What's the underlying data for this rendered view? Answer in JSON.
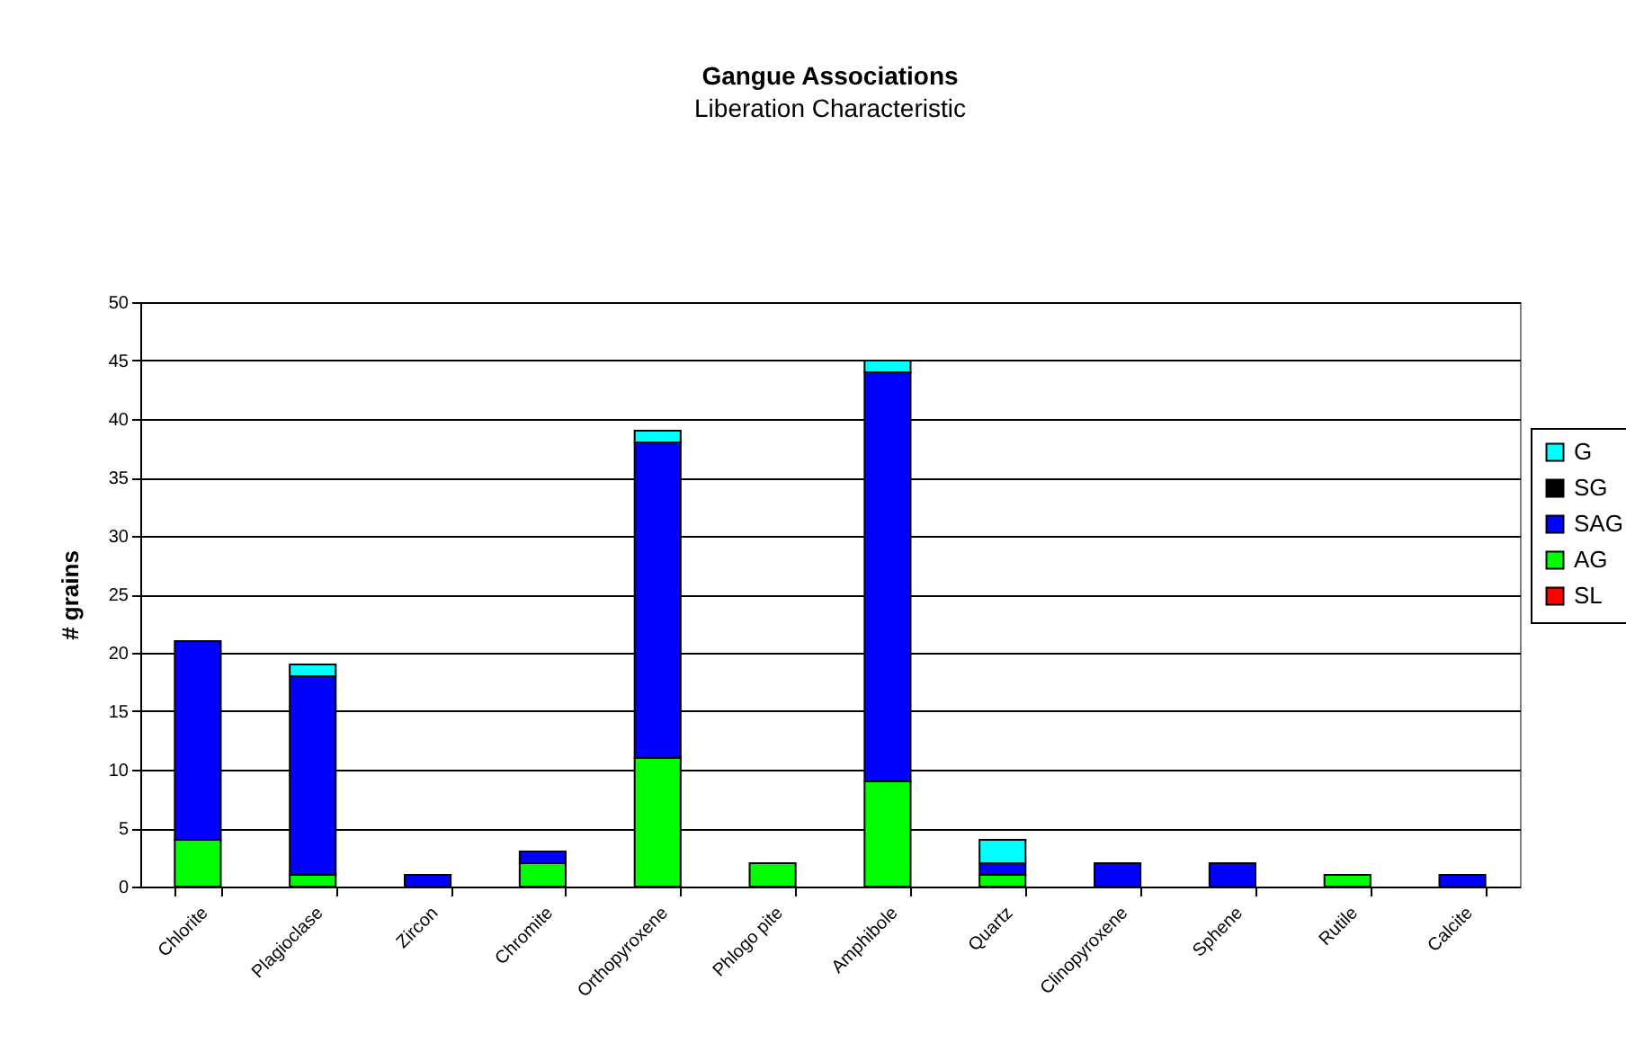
{
  "chart_data": {
    "type": "bar",
    "title": "Gangue Associations",
    "subtitle": "Liberation Characteristic",
    "ylabel": "# grains",
    "categories": [
      "Chlorite",
      "Plagioclase",
      "Zircon",
      "Chromite",
      "Orthopyroxene",
      "Phlogo pite",
      "Amphibole",
      "Quartz",
      "Clinopyroxene",
      "Sphene",
      "Rutile",
      "Calcite"
    ],
    "series": [
      {
        "name": "SL",
        "color": "#ff0000",
        "values": [
          0,
          0,
          0,
          0,
          0,
          0,
          0,
          0,
          0,
          0,
          0,
          0
        ]
      },
      {
        "name": "AG",
        "color": "#00ff00",
        "values": [
          4,
          1,
          0,
          2,
          11,
          2,
          9,
          1,
          0,
          0,
          1,
          0
        ]
      },
      {
        "name": "SAG",
        "color": "#0000ff",
        "values": [
          17,
          17,
          1,
          1,
          27,
          0,
          35,
          1,
          2,
          2,
          0,
          1
        ]
      },
      {
        "name": "SG",
        "color": "#000000",
        "values": [
          0,
          0,
          0,
          0,
          0,
          0,
          0,
          0,
          0,
          0,
          0,
          0
        ]
      },
      {
        "name": "G",
        "color": "#00ffff",
        "values": [
          0,
          1,
          0,
          0,
          1,
          0,
          1,
          2,
          0,
          0,
          0,
          0
        ]
      }
    ],
    "stacked": true,
    "ylim": [
      0,
      50
    ],
    "yticks": [
      0,
      5,
      10,
      15,
      20,
      25,
      30,
      35,
      40,
      45,
      50
    ],
    "grid": "y",
    "legend": "right"
  }
}
